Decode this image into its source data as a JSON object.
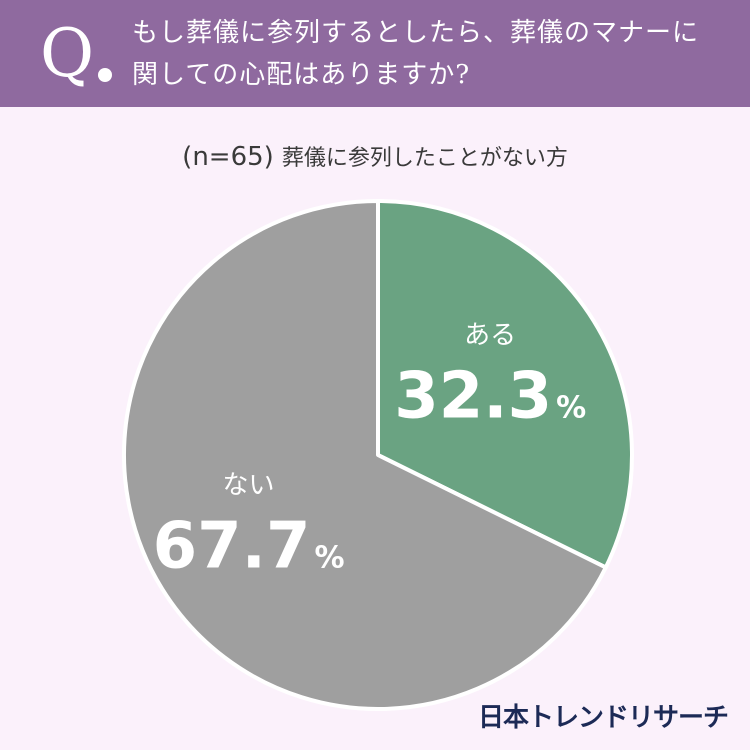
{
  "header": {
    "q_mark": "Q",
    "question_line1": "もし葬儀に参列するとしたら、葬儀のマナーに",
    "question_line2": "関しての心配はありますか?"
  },
  "subtitle": {
    "sample": "(n=65)",
    "group": "葬儀に参列したことがない方"
  },
  "chart_data": {
    "type": "pie",
    "slices": [
      {
        "label": "ある",
        "value": 32.3,
        "display": "32.3",
        "unit": "%",
        "color": "#6aa382"
      },
      {
        "label": "ない",
        "value": 67.7,
        "display": "67.7",
        "unit": "%",
        "color": "#9f9f9f"
      }
    ],
    "start": "12 o'clock",
    "direction": "clockwise"
  },
  "brand": {
    "logo_text": "日本トレンドリサーチ"
  }
}
